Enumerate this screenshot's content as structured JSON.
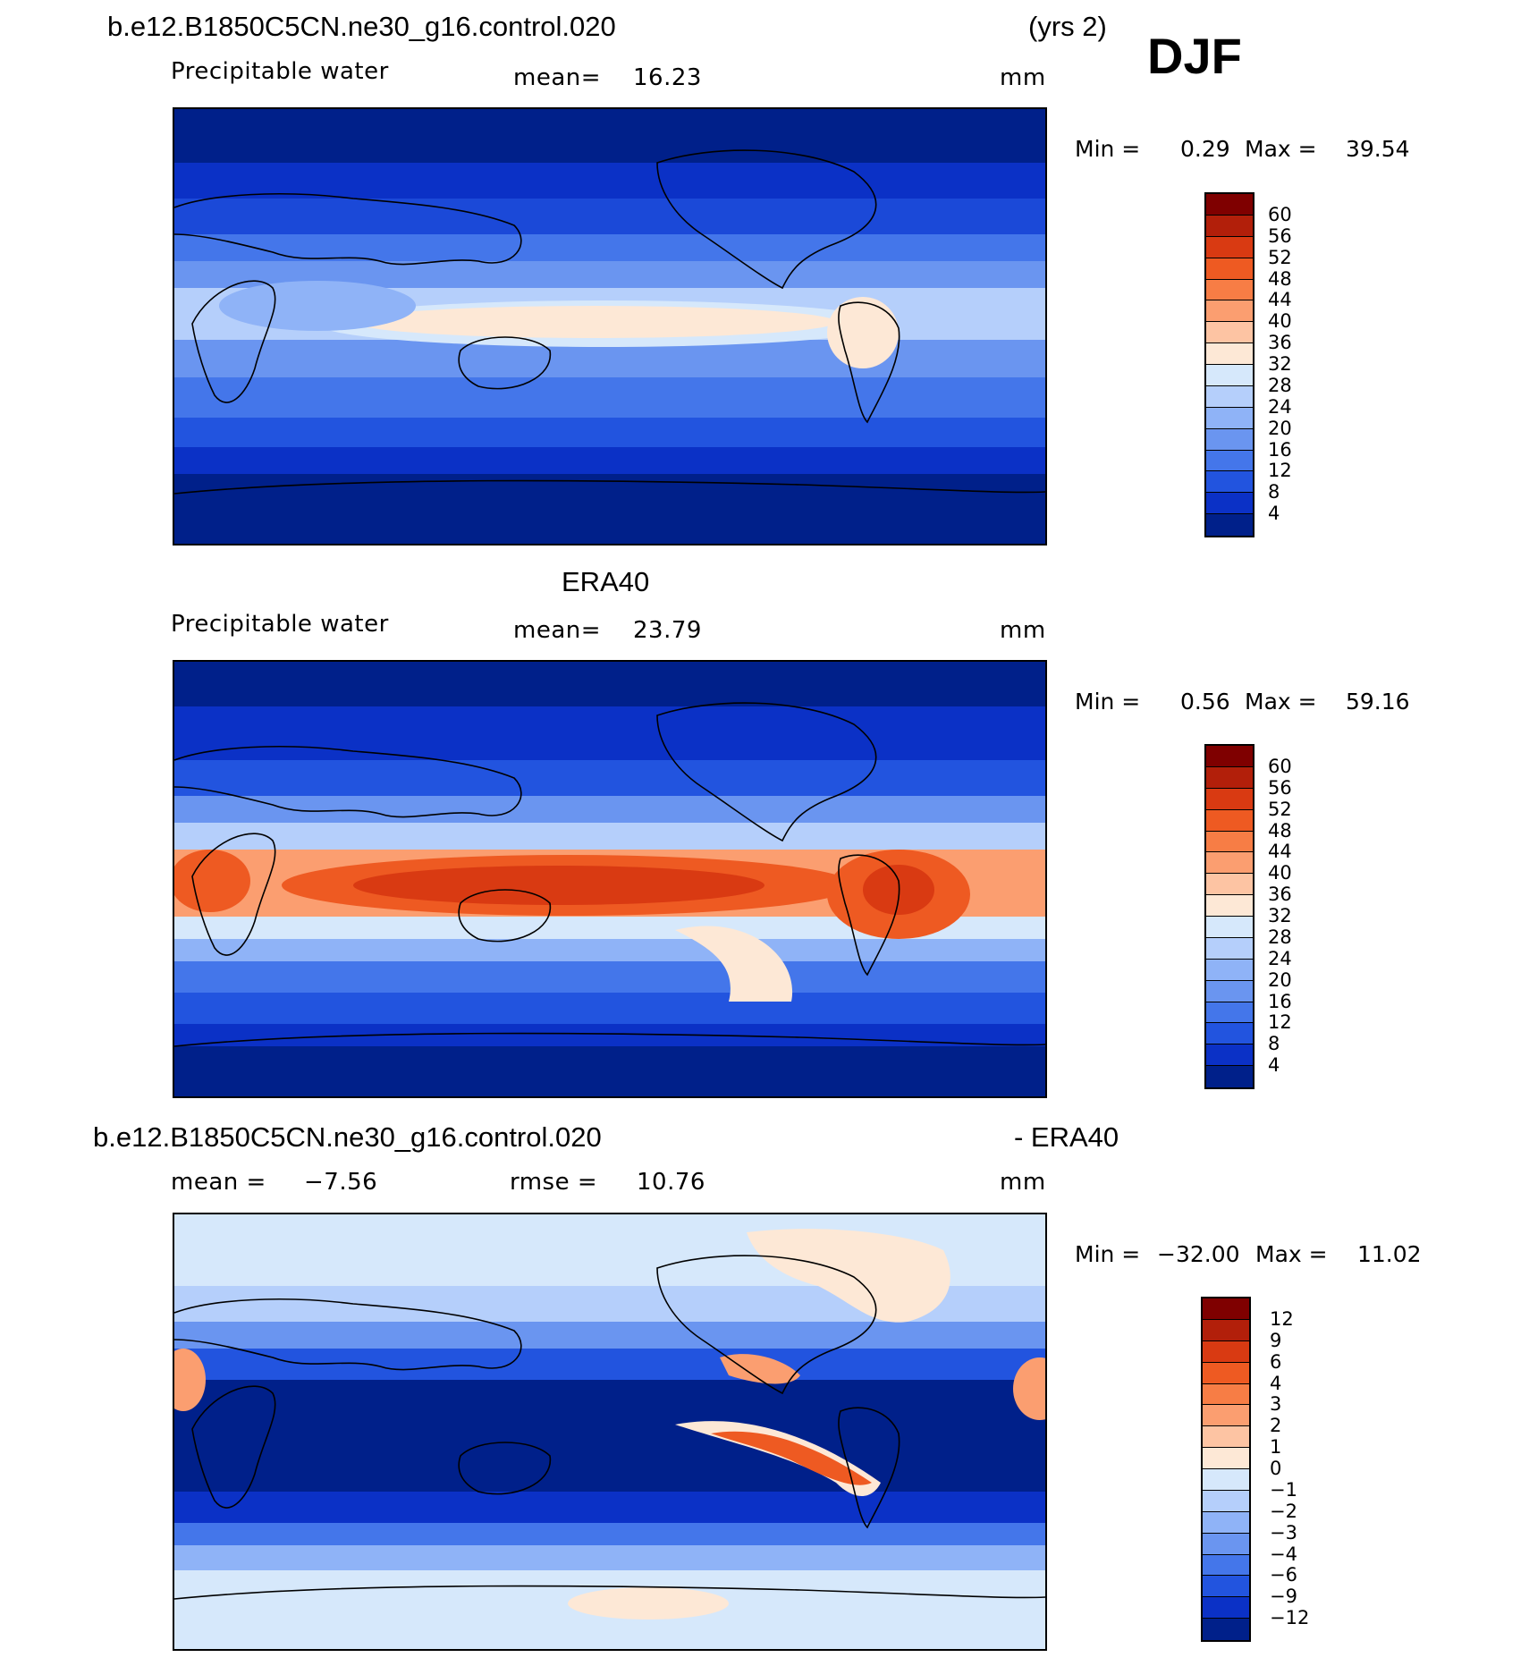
{
  "header": {
    "case_name": "b.e12.B1850C5CN.ne30_g16.control.020",
    "years": "(yrs 2)",
    "season": "DJF"
  },
  "panels": [
    {
      "id": "model",
      "variable": "Precipitable water",
      "mean_label": "mean=",
      "mean_value": "16.23",
      "units": "mm",
      "min_label": "Min =",
      "min_value": "0.29",
      "max_label": "Max =",
      "max_value": "39.54",
      "levels": [
        "60",
        "56",
        "52",
        "48",
        "44",
        "40",
        "36",
        "32",
        "28",
        "24",
        "20",
        "16",
        "12",
        "8",
        "4"
      ]
    },
    {
      "id": "obs",
      "title": "ERA40",
      "variable": "Precipitable water",
      "mean_label": "mean=",
      "mean_value": "23.79",
      "units": "mm",
      "min_label": "Min =",
      "min_value": "0.56",
      "max_label": "Max =",
      "max_value": "59.16",
      "levels": [
        "60",
        "56",
        "52",
        "48",
        "44",
        "40",
        "36",
        "32",
        "28",
        "24",
        "20",
        "16",
        "12",
        "8",
        "4"
      ]
    },
    {
      "id": "diff",
      "title_left": "b.e12.B1850C5CN.ne30_g16.control.020",
      "title_right": "- ERA40",
      "mean_label": "mean =",
      "mean_value": "−7.56",
      "rmse_label": "rmse =",
      "rmse_value": "10.76",
      "units": "mm",
      "min_label": "Min =",
      "min_value": "−32.00",
      "max_label": "Max =",
      "max_value": "11.02",
      "levels": [
        "12",
        "9",
        "6",
        "4",
        "3",
        "2",
        "1",
        "0",
        "−1",
        "−2",
        "−3",
        "−4",
        "−6",
        "−9",
        "−12"
      ]
    }
  ],
  "colormap": {
    "colors": [
      "#7f0000",
      "#b21f0a",
      "#d93a12",
      "#ee5a22",
      "#f77d45",
      "#fb9e70",
      "#fdc4a3",
      "#fde8d6",
      "#d6e8fb",
      "#b5cffb",
      "#8fb3f7",
      "#6a95f0",
      "#4476ea",
      "#2254df",
      "#0b31c6",
      "#00208a"
    ]
  },
  "chart_data": [
    {
      "type": "heatmap",
      "title": "Precipitable water",
      "units": "mm",
      "mean": 16.23,
      "min": 0.29,
      "max": 39.54,
      "contour_levels": [
        4,
        8,
        12,
        16,
        20,
        24,
        28,
        32,
        36,
        40,
        44,
        48,
        52,
        56,
        60
      ]
    },
    {
      "type": "heatmap",
      "title": "ERA40",
      "units": "mm",
      "mean": 23.79,
      "min": 0.56,
      "max": 59.16,
      "contour_levels": [
        4,
        8,
        12,
        16,
        20,
        24,
        28,
        32,
        36,
        40,
        44,
        48,
        52,
        56,
        60
      ]
    },
    {
      "type": "heatmap",
      "title": "- ERA40",
      "units": "mm",
      "mean": -7.56,
      "rmse": 10.76,
      "min": -32.0,
      "max": 11.02,
      "contour_levels": [
        -12,
        -9,
        -6,
        -4,
        -3,
        -2,
        -1,
        0,
        1,
        2,
        3,
        4,
        6,
        9,
        12
      ]
    }
  ]
}
